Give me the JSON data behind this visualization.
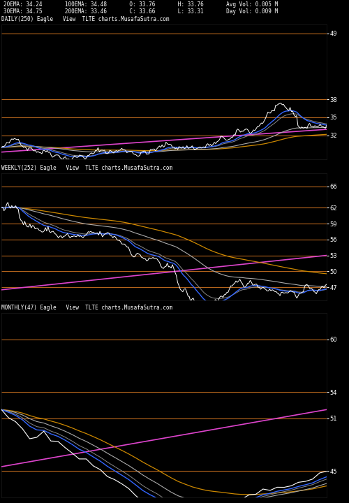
{
  "background_color": "#000000",
  "text_color": "#ffffff",
  "orange_line_color": "#c87020",
  "header_text1": "20EMA: 34.24       100EMA: 34.48       O: 33.76       H: 33.76       Avg Vol: 0.005 M",
  "header_text2": "30EMA: 34.75       200EMA: 33.46       C: 33.66       L: 33.31       Day Vol: 0.009 M",
  "panel1_label": "DAILY(250) Eagle   View  TLTE charts.MusafaSutra.com",
  "panel2_label": "WEEKLY(252) Eagle   View  TLTE charts.MusafaSutra.com",
  "panel3_label": "MONTHLY(47) Eagle   View  TLTE charts.MusafaSutra.com",
  "panel1_yticks": [
    38,
    35,
    32,
    49
  ],
  "panel2_yticks": [
    66,
    62,
    59,
    56,
    53,
    50,
    47
  ],
  "panel3_yticks": [
    60,
    54,
    51,
    45
  ],
  "panel1_ylim": [
    28.0,
    50.5
  ],
  "panel2_ylim": [
    44.5,
    68.5
  ],
  "panel3_ylim": [
    42.0,
    63.0
  ],
  "ema_colors": {
    "ema20": "#3366ff",
    "ema30": "#999999",
    "ema100": "#bbbbbb",
    "ema200": "#cc8800",
    "ema_long": "#dd44cc"
  }
}
